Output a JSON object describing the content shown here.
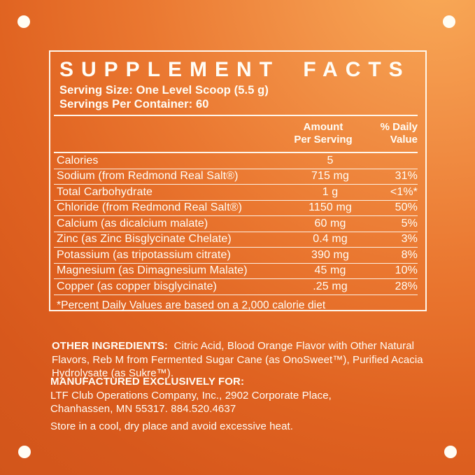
{
  "panel": {
    "title": "SUPPLEMENT FACTS",
    "serving_size": "Serving Size: One Level Scoop (5.5 g)",
    "servings_per_container": "Servings Per Container: 60",
    "columns": {
      "amount": "Amount\nPer Serving",
      "daily_value": "% Daily\nValue"
    },
    "rows": [
      {
        "name": "Calories",
        "amount": "5",
        "daily_value": ""
      },
      {
        "name": "Sodium (from Redmond Real Salt®)",
        "amount": "715 mg",
        "daily_value": "31%"
      },
      {
        "name": "Total Carbohydrate",
        "amount": "1 g",
        "daily_value": "<1%*"
      },
      {
        "name": "Chloride (from Redmond Real Salt®)",
        "amount": "1150 mg",
        "daily_value": "50%"
      },
      {
        "name": "Calcium (as dicalcium malate)",
        "amount": "60 mg",
        "daily_value": "5%"
      },
      {
        "name": "Zinc (as Zinc Bisglycinate Chelate)",
        "amount": "0.4 mg",
        "daily_value": "3%"
      },
      {
        "name": "Potassium (as tripotassium citrate)",
        "amount": "390 mg",
        "daily_value": "8%"
      },
      {
        "name": "Magnesium (as Dimagnesium Malate)",
        "amount": "45 mg",
        "daily_value": "10%"
      },
      {
        "name": "Copper (as copper bisglycinate)",
        "amount": ".25 mg",
        "daily_value": "28%"
      }
    ],
    "footnote": "*Percent Daily Values are based on a 2,000 calorie diet"
  },
  "other_ingredients": {
    "label": "OTHER INGREDIENTS:",
    "text": "Citric Acid, Blood Orange Flavor with Other Natural Flavors, Reb M from Fermented Sugar Cane (as OnoSweet™), Purified Acacia Hydrolysate (as Sukre™)."
  },
  "manufactured": {
    "label": "MANUFACTURED EXCLUSIVELY FOR:",
    "address_line1": "LTF Club Operations Company, Inc., 2902 Corporate Place,",
    "address_line2": "Chanhassen, MN 55317. 884.520.4637"
  },
  "storage_note": "Store in a cool, dry place and avoid excessive heat.",
  "colors": {
    "background_dark": "#d0541a",
    "background_light": "#f9ab58",
    "text": "#fffdf6"
  }
}
